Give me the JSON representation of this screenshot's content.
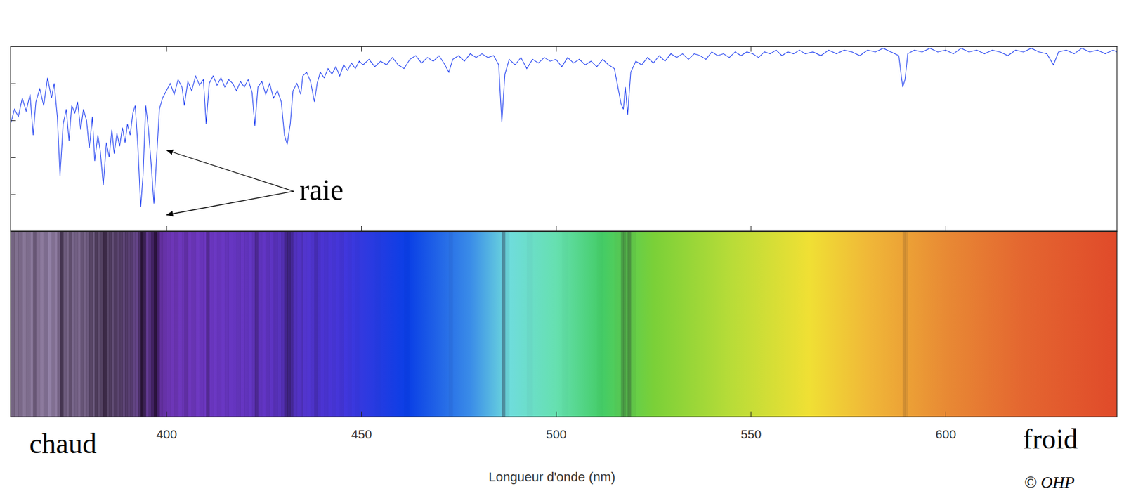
{
  "chart_data": {
    "type": "line",
    "x_label": "Longueur d'onde (nm)",
    "annotation": "raie",
    "left_label": "chaud",
    "right_label": "froid",
    "source": "© OHP",
    "color": "#1f3ff0",
    "xlim": [
      360,
      644
    ],
    "xticks": [
      400,
      450,
      500,
      550,
      600
    ],
    "ylim": [
      0,
      1
    ],
    "yticks": [
      0,
      0.2,
      0.4,
      0.6,
      0.8,
      1
    ],
    "tick_labels": "x",
    "x": [
      360,
      361,
      362,
      363,
      364,
      365,
      365.8,
      366.5,
      367.5,
      368.5,
      369.5,
      370.5,
      371.2,
      372,
      372.7,
      373.5,
      374.3,
      375,
      375.7,
      376.5,
      377.2,
      378,
      378.7,
      379.5,
      380.2,
      381,
      381.6,
      382.4,
      383,
      383.8,
      384.6,
      385.3,
      386,
      386.6,
      387.3,
      388,
      388.7,
      389.4,
      390,
      390.7,
      391.4,
      392,
      392.7,
      393.4,
      394,
      394.7,
      395.4,
      396.1,
      396.8,
      397.5,
      398.2,
      399,
      400,
      401,
      402,
      403,
      404,
      404.6,
      405.5,
      406.5,
      407.5,
      408.5,
      409.5,
      410.2,
      411,
      412,
      413,
      414,
      415,
      416,
      417,
      418,
      419,
      420,
      421,
      422,
      422.7,
      423.5,
      424.5,
      425.5,
      426.5,
      427.5,
      428.5,
      429.5,
      430.3,
      431,
      431.8,
      432.5,
      433.5,
      434.5,
      435,
      436,
      437,
      438,
      438.7,
      439.5,
      440.5,
      441.5,
      442.5,
      443.5,
      444.5,
      445.5,
      446.5,
      447.5,
      448.5,
      449.5,
      450.5,
      452,
      453.5,
      455,
      456.5,
      458,
      459.5,
      461,
      462.5,
      464,
      465.5,
      467,
      468.5,
      470,
      471.5,
      472.5,
      473.5,
      475,
      476.5,
      478,
      479.5,
      481,
      482.5,
      484,
      485.3,
      486.1,
      486.9,
      488,
      489.5,
      491,
      492.5,
      494,
      495.5,
      497,
      498.5,
      500,
      501.5,
      503,
      504.5,
      506,
      507.5,
      509,
      510.5,
      512,
      513.5,
      515,
      516.7,
      517.3,
      517.8,
      518.4,
      519.2,
      520.5,
      522,
      523.5,
      525,
      526.5,
      528,
      529.5,
      531,
      532.5,
      534,
      535.5,
      537,
      538.5,
      540,
      541.5,
      543,
      544.5,
      546,
      547.5,
      549,
      550.5,
      552,
      553.5,
      555,
      556.5,
      558,
      559.5,
      561,
      562.5,
      564,
      566,
      568,
      570,
      572,
      574,
      576,
      578,
      580,
      582,
      584,
      586,
      588,
      589,
      589.6,
      590.3,
      592,
      594,
      596,
      598,
      600,
      602,
      604,
      606,
      608,
      610,
      612,
      614,
      616,
      618,
      620,
      622,
      624,
      626,
      627.7,
      629,
      631,
      633,
      635,
      637,
      639,
      641,
      643,
      644
    ],
    "values": [
      0.58,
      0.66,
      0.62,
      0.72,
      0.65,
      0.74,
      0.52,
      0.7,
      0.77,
      0.68,
      0.83,
      0.72,
      0.8,
      0.62,
      0.3,
      0.58,
      0.66,
      0.49,
      0.68,
      0.64,
      0.7,
      0.55,
      0.66,
      0.6,
      0.45,
      0.62,
      0.38,
      0.52,
      0.44,
      0.25,
      0.48,
      0.4,
      0.55,
      0.42,
      0.53,
      0.46,
      0.56,
      0.48,
      0.58,
      0.52,
      0.64,
      0.68,
      0.45,
      0.13,
      0.3,
      0.68,
      0.55,
      0.36,
      0.15,
      0.4,
      0.66,
      0.72,
      0.76,
      0.8,
      0.74,
      0.82,
      0.78,
      0.68,
      0.81,
      0.76,
      0.84,
      0.79,
      0.82,
      0.58,
      0.8,
      0.84,
      0.79,
      0.83,
      0.78,
      0.82,
      0.8,
      0.76,
      0.81,
      0.78,
      0.82,
      0.75,
      0.57,
      0.78,
      0.81,
      0.74,
      0.8,
      0.72,
      0.76,
      0.7,
      0.52,
      0.47,
      0.58,
      0.76,
      0.8,
      0.74,
      0.84,
      0.86,
      0.81,
      0.7,
      0.8,
      0.86,
      0.83,
      0.88,
      0.85,
      0.89,
      0.84,
      0.9,
      0.87,
      0.91,
      0.88,
      0.92,
      0.9,
      0.93,
      0.89,
      0.92,
      0.9,
      0.94,
      0.9,
      0.88,
      0.93,
      0.95,
      0.91,
      0.94,
      0.92,
      0.95,
      0.9,
      0.86,
      0.93,
      0.95,
      0.92,
      0.96,
      0.94,
      0.96,
      0.94,
      0.95,
      0.9,
      0.59,
      0.85,
      0.93,
      0.9,
      0.94,
      0.88,
      0.93,
      0.91,
      0.94,
      0.92,
      0.93,
      0.89,
      0.94,
      0.91,
      0.93,
      0.9,
      0.92,
      0.89,
      0.93,
      0.9,
      0.88,
      0.69,
      0.66,
      0.78,
      0.63,
      0.86,
      0.92,
      0.9,
      0.94,
      0.91,
      0.95,
      0.92,
      0.96,
      0.94,
      0.96,
      0.93,
      0.96,
      0.95,
      0.93,
      0.97,
      0.95,
      0.96,
      0.94,
      0.97,
      0.95,
      0.97,
      0.96,
      0.94,
      0.97,
      0.96,
      0.98,
      0.95,
      0.97,
      0.96,
      0.98,
      0.96,
      0.97,
      0.95,
      0.98,
      0.96,
      0.98,
      0.97,
      0.95,
      0.98,
      0.97,
      0.99,
      0.97,
      0.95,
      0.78,
      0.82,
      0.96,
      0.98,
      0.97,
      0.99,
      0.97,
      0.98,
      0.96,
      0.99,
      0.97,
      0.98,
      0.96,
      0.98,
      0.97,
      0.95,
      0.98,
      0.97,
      0.99,
      0.97,
      0.96,
      0.9,
      0.97,
      0.98,
      0.96,
      0.99,
      0.97,
      0.98,
      0.96,
      0.98,
      0.97
    ]
  }
}
